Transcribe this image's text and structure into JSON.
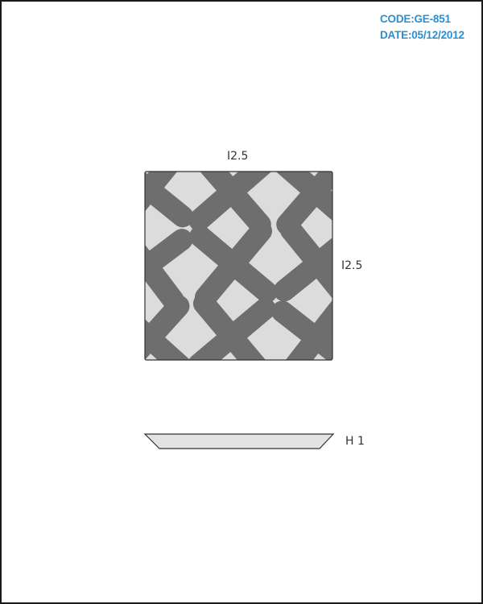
{
  "header": {
    "code": "CODE:GE-851",
    "date": "DATE:05/12/2012"
  },
  "dimensions": {
    "width_label": "I2.5",
    "depth_label": "I2.5",
    "height_label": "H 1"
  },
  "colors": {
    "accent": "#2a8fd1",
    "tile_base": "#dcdcdc",
    "tile_pattern": "#6e6e6e",
    "profile_fill": "#e3e3e3",
    "outline": "#333333"
  }
}
